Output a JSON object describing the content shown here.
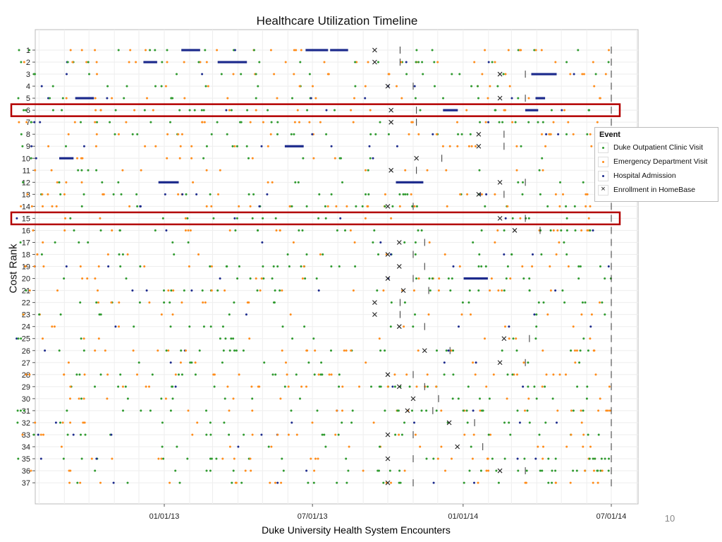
{
  "slide": {
    "caption": "Duke University Health System Encounters",
    "page_number": "10"
  },
  "chart_data": {
    "type": "scatter",
    "title": "Healthcare Utilization Timeline",
    "xlabel": "",
    "ylabel": "Cost Rank",
    "x_ticks": [
      "01/01/13",
      "07/01/13",
      "01/01/14",
      "07/01/14"
    ],
    "xlim": [
      "2012-07-01",
      "2014-07-15"
    ],
    "y_categories": [
      "1",
      "2",
      "3",
      "4",
      "5",
      "6",
      "7",
      "8",
      "9",
      "10",
      "11",
      "12",
      "13",
      "14",
      "15",
      "16",
      "17",
      "18",
      "19",
      "20",
      "21",
      "22",
      "23",
      "24",
      "25",
      "26",
      "27",
      "28",
      "29",
      "30",
      "31",
      "32",
      "33",
      "34",
      "35",
      "36",
      "37"
    ],
    "grid": true,
    "legend": {
      "title": "Event",
      "placement": "right",
      "entries": [
        {
          "label": "Duke Outpatient Clinic Visit",
          "color": "#2e9a2e",
          "shape": "dot"
        },
        {
          "label": "Emergency Department Visit",
          "color": "#ff8c1a",
          "shape": "dot"
        },
        {
          "label": "Hospital Admission",
          "color": "#1c2a8c",
          "shape": "dot"
        },
        {
          "label": "Enrollment in HomeBase",
          "color": "#222222",
          "shape": "x"
        }
      ]
    },
    "highlighted_ranks": [
      "6",
      "15"
    ],
    "highlight_color": "#b30000",
    "study_end_date": "2014-07-01",
    "patients": [
      {
        "rank": "1",
        "enrollment": "2013-09-15"
      },
      {
        "rank": "2",
        "enrollment": "2013-09-15"
      },
      {
        "rank": "3",
        "enrollment": "2014-02-15"
      },
      {
        "rank": "4",
        "enrollment": "2013-10-01"
      },
      {
        "rank": "5",
        "enrollment": "2014-02-15"
      },
      {
        "rank": "6",
        "enrollment": "2013-10-05"
      },
      {
        "rank": "7",
        "enrollment": "2013-10-05"
      },
      {
        "rank": "8",
        "enrollment": "2014-01-20"
      },
      {
        "rank": "9",
        "enrollment": "2014-01-20"
      },
      {
        "rank": "10",
        "enrollment": "2013-11-05"
      },
      {
        "rank": "11",
        "enrollment": "2013-10-05"
      },
      {
        "rank": "12",
        "enrollment": "2014-02-15"
      },
      {
        "rank": "13",
        "enrollment": "2014-01-20"
      },
      {
        "rank": "14",
        "enrollment": "2013-10-01"
      },
      {
        "rank": "15",
        "enrollment": "2014-02-15"
      },
      {
        "rank": "16",
        "enrollment": "2014-03-05"
      },
      {
        "rank": "17",
        "enrollment": "2013-10-15"
      },
      {
        "rank": "18",
        "enrollment": "2013-10-01"
      },
      {
        "rank": "19",
        "enrollment": "2013-10-15"
      },
      {
        "rank": "20",
        "enrollment": "2013-10-01"
      },
      {
        "rank": "21",
        "enrollment": "2013-10-20"
      },
      {
        "rank": "22",
        "enrollment": "2013-09-15"
      },
      {
        "rank": "23",
        "enrollment": "2013-09-15"
      },
      {
        "rank": "24",
        "enrollment": "2013-10-15"
      },
      {
        "rank": "25",
        "enrollment": "2014-02-20"
      },
      {
        "rank": "26",
        "enrollment": "2013-11-15"
      },
      {
        "rank": "27",
        "enrollment": "2014-02-15"
      },
      {
        "rank": "28",
        "enrollment": "2013-10-01"
      },
      {
        "rank": "29",
        "enrollment": "2013-10-15"
      },
      {
        "rank": "30",
        "enrollment": "2013-11-01"
      },
      {
        "rank": "31",
        "enrollment": "2013-10-25"
      },
      {
        "rank": "32",
        "enrollment": "2013-12-15"
      },
      {
        "rank": "33",
        "enrollment": "2013-10-01"
      },
      {
        "rank": "34",
        "enrollment": "2013-12-25"
      },
      {
        "rank": "35",
        "enrollment": "2013-10-01"
      },
      {
        "rank": "36",
        "enrollment": "2014-02-15"
      },
      {
        "rank": "37",
        "enrollment": "2013-10-01"
      }
    ]
  }
}
